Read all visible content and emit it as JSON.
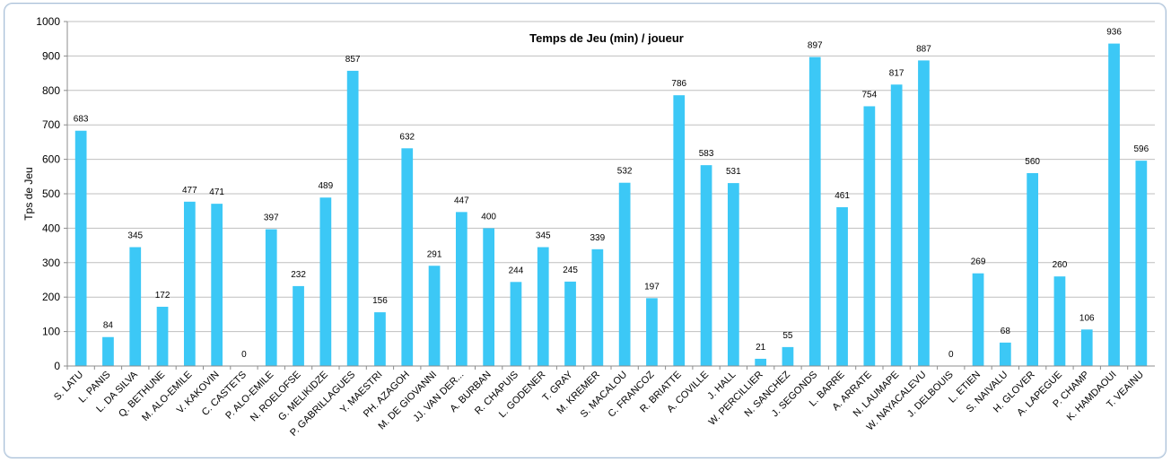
{
  "chart_data": {
    "type": "bar",
    "title": "Temps de Jeu (min) / joueur",
    "xlabel": "",
    "ylabel": "Tps de Jeu",
    "ylim": [
      0,
      1000
    ],
    "yticks": [
      0,
      100,
      200,
      300,
      400,
      500,
      600,
      700,
      800,
      900,
      1000
    ],
    "grid": true,
    "legend": "none",
    "bar_color": "#3cc8f6",
    "categories": [
      "S. LATU",
      "L. PANIS",
      "L. DA SILVA",
      "Q. BETHUNE",
      "M. ALO-EMILE",
      "V. KAKOVIN",
      "C. CASTETS",
      "P. ALO-EMILE",
      "N. ROELOFSE",
      "G. MELIKIDZE",
      "P. GABRILLAGUES",
      "Y. MAESTRI",
      "PH. AZAGOH",
      "M. DE GIOVANNI",
      "JJ. VAN DER...",
      "A. BURBAN",
      "R. CHAPUIS",
      "L. GODENER",
      "T. GRAY",
      "M. KREMER",
      "S. MACALOU",
      "C. FRANCOZ",
      "R. BRIATTE",
      "A. COVILLE",
      "J. HALL",
      "W. PERCILLIER",
      "N. SANCHEZ",
      "J. SEGONDS",
      "L. BARRE",
      "A. ARRATE",
      "N. LAUMAPE",
      "W. NAYACALEVU",
      "J. DELBOUIS",
      "L. ETIEN",
      "S. NAIVALU",
      "H. GLOVER",
      "A. LAPEGUE",
      "P. CHAMP",
      "K. HAMDAOUI",
      "T. VEAINU"
    ],
    "values": [
      683,
      84,
      345,
      172,
      477,
      471,
      0,
      397,
      232,
      489,
      857,
      156,
      632,
      291,
      447,
      400,
      244,
      345,
      245,
      339,
      532,
      197,
      786,
      583,
      531,
      21,
      55,
      897,
      461,
      754,
      817,
      887,
      0,
      269,
      68,
      560,
      260,
      106,
      936,
      596
    ]
  }
}
